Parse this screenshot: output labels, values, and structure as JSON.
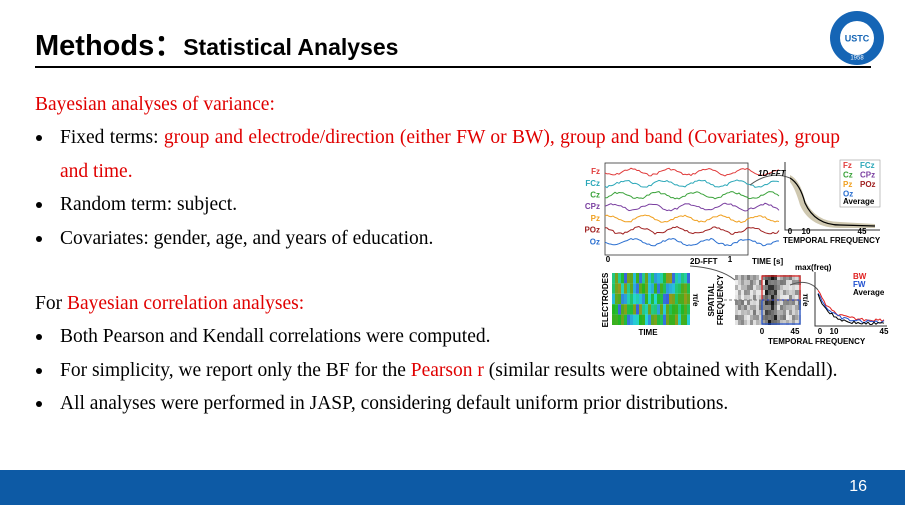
{
  "header": {
    "title": "Methods：",
    "subtitle": "Statistical Analyses"
  },
  "logo": {
    "name": "USTC",
    "year": "1958"
  },
  "highlight_color": "#e00000",
  "body": [
    {
      "kind": "heading",
      "segments": [
        {
          "text": "Bayesian analyses of variance:",
          "highlight": true
        }
      ]
    },
    {
      "kind": "bullet",
      "segments": [
        {
          "text": "Fixed terms: ",
          "highlight": false
        },
        {
          "text": "group and electrode/direction (either FW or BW), group and band (Covariates), group and time.",
          "highlight": true
        }
      ]
    },
    {
      "kind": "bullet",
      "segments": [
        {
          "text": "Random term: subject.",
          "highlight": false
        }
      ]
    },
    {
      "kind": "bullet",
      "segments": [
        {
          "text": "Covariates: gender, age, and years of education.",
          "highlight": false
        }
      ]
    },
    {
      "kind": "heading",
      "segments": [
        {
          "text": "For ",
          "highlight": false
        },
        {
          "text": "Bayesian correlation analyses:",
          "highlight": true
        }
      ]
    },
    {
      "kind": "bullet",
      "segments": [
        {
          "text": "Both Pearson and Kendall correlations were computed.",
          "highlight": false
        }
      ]
    },
    {
      "kind": "bullet",
      "segments": [
        {
          "text": "For simplicity, we report only the BF for the ",
          "highlight": false
        },
        {
          "text": "Pearson r",
          "highlight": true
        },
        {
          "text": " (similar results were obtained with Kendall).",
          "highlight": false
        }
      ]
    },
    {
      "kind": "bullet",
      "segments": [
        {
          "text": "All analyses were performed in JASP, considering default uniform prior distributions.",
          "highlight": false
        }
      ]
    }
  ],
  "figure": {
    "electrodes": [
      {
        "label": "Fz",
        "color": "#e03a3a"
      },
      {
        "label": "FCz",
        "color": "#2aa7b8"
      },
      {
        "label": "Cz",
        "color": "#3aa23a"
      },
      {
        "label": "CPz",
        "color": "#7a3fa0"
      },
      {
        "label": "Pz",
        "color": "#f0a020"
      },
      {
        "label": "POz",
        "color": "#a02020"
      },
      {
        "label": "Oz",
        "color": "#2a6fd0"
      }
    ],
    "average_label": "Average",
    "fft1": "1D-FFT",
    "fft2": "2D-FFT",
    "time_axis": "TIME [s]",
    "time_ticks": [
      "0",
      "1"
    ],
    "freq_axis": "TEMPORAL FREQUENCY",
    "freq_ticks": [
      "0",
      "10",
      "45"
    ],
    "electrodes_axis": "ELECTRODES",
    "time_label": "TIME",
    "pi_e": "π/e",
    "spatial_axis": [
      "SPATIAL",
      "FREQUENCY"
    ],
    "spatial_ticks": [
      "0",
      "45"
    ],
    "max_label": "max(freq)",
    "directions": [
      {
        "label": "BW",
        "color": "#e02020"
      },
      {
        "label": "FW",
        "color": "#2050d0"
      },
      {
        "label": "Average",
        "color": "#000000"
      }
    ],
    "freq_axis2": "TEMPORAL FREQUENCY",
    "freq_ticks2": [
      "0",
      "10",
      "45"
    ]
  },
  "footer": {
    "page": "16"
  }
}
